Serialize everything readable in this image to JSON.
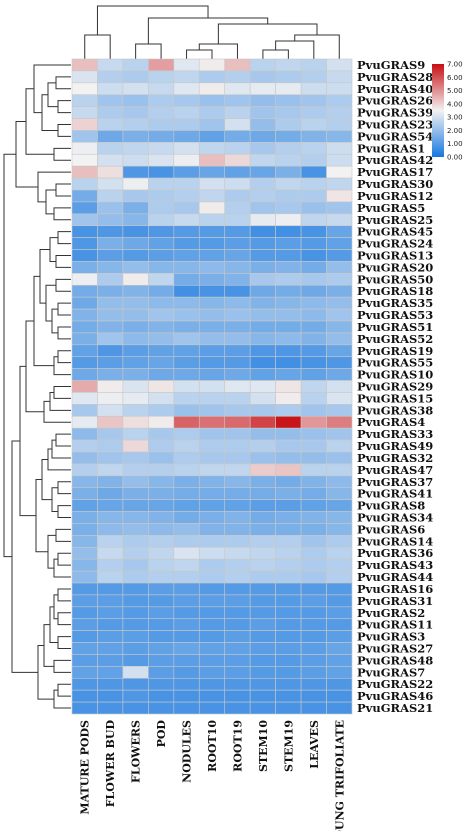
{
  "chart_data": {
    "type": "heatmap",
    "title": "",
    "xlabel": "",
    "ylabel": "",
    "color_scale": {
      "min": 0,
      "max": 7,
      "ticks": [
        "0.00",
        "1.00",
        "2.00",
        "3.00",
        "4.00",
        "5.00",
        "6.00",
        "7.00"
      ],
      "colors": [
        "#1677e0",
        "#f2f2f2",
        "#c70f14"
      ]
    },
    "columns": [
      "MATURE PODS",
      "FLOWER BUD",
      "FLOWERS",
      "POD",
      "NODULES",
      "ROOT10",
      "ROOT19",
      "STEM10",
      "STEM19",
      "LEAVES",
      "YOUNG TRIFOLIATE"
    ],
    "rows": [
      "PvuGRAS9",
      "PvuGRAS28",
      "PvuGRAS40",
      "PvuGRAS26",
      "PvuGRAS39",
      "PvuGRAS23",
      "PvuGRAS54",
      "PvuGRAS1",
      "PvuGRAS42",
      "PvuGRAS17",
      "PvuGRAS30",
      "PvuGRAS12",
      "PvuGRAS5",
      "PvuGRAS25",
      "PvuGRAS45",
      "PvuGRAS24",
      "PvuGRAS13",
      "PvuGRAS20",
      "PvuGRAS50",
      "PvuGRAS18",
      "PvuGRAS35",
      "PvuGRAS53",
      "PvuGRAS51",
      "PvuGRAS52",
      "PvuGRAS19",
      "PvuGRAS55",
      "PvuGRAS10",
      "PvuGRAS29",
      "PvuGRAS15",
      "PvuGRAS38",
      "PvuGRAS4",
      "PvuGRAS33",
      "PvuGRAS49",
      "PvuGRAS32",
      "PvuGRAS47",
      "PvuGRAS37",
      "PvuGRAS41",
      "PvuGRAS8",
      "PvuGRAS34",
      "PvuGRAS6",
      "PvuGRAS14",
      "PvuGRAS36",
      "PvuGRAS43",
      "PvuGRAS44",
      "PvuGRAS16",
      "PvuGRAS31",
      "PvuGRAS2",
      "PvuGRAS11",
      "PvuGRAS3",
      "PvuGRAS27",
      "PvuGRAS48",
      "PvuGRAS7",
      "PvuGRAS22",
      "PvuGRAS46",
      "PvuGRAS21"
    ],
    "values": [
      [
        4.3,
        2.8,
        2.6,
        4.8,
        3.2,
        3.6,
        4.3,
        2.6,
        2.7,
        2.6,
        3.0
      ],
      [
        3.1,
        2.5,
        2.4,
        2.6,
        2.7,
        2.4,
        2.5,
        2.3,
        2.4,
        2.5,
        2.8
      ],
      [
        3.5,
        2.9,
        3.0,
        2.8,
        3.2,
        3.6,
        3.2,
        3.3,
        3.3,
        2.9,
        2.9
      ],
      [
        2.6,
        2.2,
        2.1,
        2.4,
        2.3,
        2.1,
        2.2,
        2.0,
        2.1,
        2.2,
        2.4
      ],
      [
        2.8,
        2.4,
        2.3,
        2.5,
        2.6,
        2.4,
        2.6,
        2.2,
        2.3,
        2.4,
        2.5
      ],
      [
        4.0,
        2.6,
        2.5,
        2.4,
        2.4,
        2.2,
        3.0,
        2.0,
        2.4,
        2.6,
        2.5
      ],
      [
        2.2,
        1.4,
        1.6,
        1.5,
        1.4,
        1.2,
        1.5,
        1.4,
        1.5,
        1.7,
        1.8
      ],
      [
        3.4,
        2.6,
        2.7,
        2.8,
        3.0,
        2.7,
        2.6,
        2.3,
        2.5,
        2.6,
        2.9
      ],
      [
        3.5,
        3.0,
        2.9,
        3.1,
        3.4,
        4.3,
        3.9,
        2.7,
        2.6,
        2.5,
        2.9
      ],
      [
        4.3,
        3.8,
        0.9,
        0.8,
        1.1,
        1.3,
        1.2,
        1.3,
        1.6,
        0.8,
        3.5
      ],
      [
        2.6,
        3.0,
        3.4,
        2.6,
        2.6,
        3.0,
        2.9,
        2.5,
        2.7,
        2.6,
        2.7
      ],
      [
        1.5,
        2.6,
        2.3,
        2.4,
        2.5,
        2.7,
        2.4,
        2.5,
        2.4,
        2.4,
        3.7
      ],
      [
        1.1,
        2.1,
        1.6,
        2.4,
        2.3,
        3.6,
        2.5,
        2.2,
        2.3,
        2.1,
        2.2
      ],
      [
        2.2,
        2.0,
        1.8,
        2.6,
        2.8,
        2.6,
        2.6,
        3.3,
        3.4,
        2.7,
        2.8
      ],
      [
        0.8,
        0.9,
        0.8,
        0.9,
        1.0,
        1.0,
        1.0,
        0.7,
        0.7,
        0.8,
        1.3
      ],
      [
        0.9,
        1.6,
        1.4,
        1.2,
        1.0,
        1.0,
        1.1,
        1.0,
        1.1,
        1.0,
        1.2
      ],
      [
        0.8,
        1.1,
        1.0,
        1.1,
        1.2,
        1.2,
        1.3,
        1.0,
        1.0,
        0.8,
        1.0
      ],
      [
        1.6,
        1.8,
        2.0,
        1.8,
        1.8,
        1.9,
        1.8,
        1.6,
        1.7,
        1.5,
        2.0
      ],
      [
        3.4,
        2.4,
        3.6,
        2.7,
        1.5,
        1.6,
        1.7,
        2.3,
        2.4,
        2.3,
        2.4
      ],
      [
        1.5,
        1.6,
        1.7,
        1.5,
        0.7,
        0.8,
        0.8,
        1.4,
        1.5,
        1.4,
        1.6
      ],
      [
        1.4,
        2.0,
        2.0,
        1.9,
        1.9,
        1.8,
        1.9,
        1.7,
        1.8,
        1.9,
        2.0
      ],
      [
        1.7,
        2.0,
        2.0,
        2.2,
        2.1,
        2.0,
        2.1,
        2.0,
        2.0,
        1.9,
        2.2
      ],
      [
        1.5,
        1.7,
        1.6,
        1.7,
        1.6,
        1.6,
        1.6,
        1.5,
        1.5,
        1.5,
        1.8
      ],
      [
        1.6,
        2.2,
        1.9,
        2.0,
        2.2,
        2.0,
        2.0,
        1.8,
        1.9,
        1.7,
        2.0
      ],
      [
        1.2,
        0.9,
        1.1,
        1.2,
        1.2,
        1.1,
        1.1,
        0.9,
        0.9,
        1.0,
        1.3
      ],
      [
        1.0,
        1.1,
        1.2,
        1.3,
        1.1,
        1.0,
        1.0,
        0.7,
        0.7,
        0.8,
        0.9
      ],
      [
        1.4,
        1.6,
        1.6,
        1.4,
        1.4,
        1.3,
        1.4,
        1.2,
        1.3,
        1.2,
        1.4
      ],
      [
        4.6,
        3.6,
        3.1,
        3.7,
        3.0,
        3.0,
        3.2,
        3.2,
        3.7,
        2.7,
        3.0
      ],
      [
        3.2,
        3.4,
        3.3,
        3.0,
        2.6,
        2.6,
        2.6,
        3.0,
        3.6,
        2.6,
        3.1
      ],
      [
        2.3,
        3.0,
        2.6,
        2.4,
        2.1,
        2.2,
        2.3,
        2.3,
        2.4,
        2.2,
        2.3
      ],
      [
        3.3,
        4.2,
        3.8,
        3.6,
        5.7,
        5.5,
        5.6,
        6.2,
        6.9,
        4.9,
        5.3
      ],
      [
        1.9,
        2.3,
        2.6,
        2.3,
        2.4,
        2.2,
        2.2,
        2.0,
        2.0,
        2.1,
        2.2
      ],
      [
        2.5,
        2.4,
        3.9,
        2.4,
        2.6,
        2.4,
        2.4,
        2.5,
        2.3,
        2.3,
        2.6
      ],
      [
        2.0,
        2.2,
        2.3,
        2.1,
        2.4,
        2.3,
        2.3,
        2.1,
        2.0,
        2.0,
        2.1
      ],
      [
        2.5,
        2.7,
        2.5,
        2.5,
        2.6,
        2.7,
        2.7,
        4.1,
        4.2,
        2.6,
        2.6
      ],
      [
        1.8,
        1.7,
        2.0,
        1.8,
        1.6,
        1.7,
        1.8,
        1.6,
        1.5,
        1.7,
        1.9
      ],
      [
        1.6,
        1.4,
        1.6,
        1.6,
        1.5,
        1.5,
        1.5,
        1.5,
        1.6,
        1.5,
        1.8
      ],
      [
        1.2,
        1.3,
        1.3,
        1.3,
        1.2,
        1.2,
        1.2,
        1.1,
        1.1,
        1.2,
        1.3
      ],
      [
        1.6,
        1.8,
        1.8,
        1.7,
        1.5,
        1.6,
        1.7,
        1.5,
        1.6,
        1.7,
        1.8
      ],
      [
        1.6,
        1.9,
        2.0,
        1.9,
        2.0,
        1.7,
        1.7,
        1.6,
        1.6,
        1.6,
        1.8
      ],
      [
        1.8,
        2.6,
        2.4,
        2.5,
        2.4,
        2.4,
        2.4,
        2.5,
        2.5,
        2.2,
        2.4
      ],
      [
        2.0,
        2.8,
        2.5,
        2.7,
        3.1,
        2.9,
        2.8,
        2.7,
        2.6,
        2.4,
        2.6
      ],
      [
        1.8,
        2.5,
        2.3,
        2.6,
        2.7,
        2.4,
        2.5,
        2.6,
        2.5,
        2.4,
        2.5
      ],
      [
        1.9,
        2.6,
        2.4,
        2.5,
        2.5,
        2.4,
        2.5,
        2.4,
        2.4,
        2.3,
        2.5
      ],
      [
        1.0,
        1.0,
        1.0,
        1.1,
        1.1,
        1.0,
        1.0,
        1.0,
        1.0,
        1.0,
        1.0
      ],
      [
        1.1,
        1.1,
        1.0,
        1.0,
        1.1,
        1.1,
        1.1,
        1.0,
        1.0,
        1.1,
        1.0
      ],
      [
        1.0,
        1.1,
        1.0,
        1.1,
        1.0,
        1.0,
        1.0,
        1.0,
        1.0,
        1.0,
        1.1
      ],
      [
        1.1,
        1.0,
        1.0,
        1.0,
        1.1,
        1.0,
        1.0,
        1.1,
        1.0,
        1.0,
        1.0
      ],
      [
        1.0,
        1.1,
        1.1,
        1.0,
        1.0,
        1.0,
        1.1,
        1.0,
        1.0,
        1.0,
        1.1
      ],
      [
        1.2,
        1.2,
        1.1,
        1.2,
        1.3,
        1.2,
        1.2,
        1.1,
        1.1,
        1.1,
        1.3
      ],
      [
        1.1,
        1.1,
        1.0,
        1.1,
        1.1,
        1.1,
        1.1,
        1.0,
        1.0,
        1.1,
        1.2
      ],
      [
        1.2,
        1.2,
        3.0,
        1.1,
        1.0,
        1.1,
        1.1,
        1.0,
        1.0,
        1.1,
        1.2
      ],
      [
        0.9,
        0.9,
        0.9,
        0.9,
        0.9,
        0.9,
        0.9,
        0.9,
        0.9,
        0.9,
        0.9
      ],
      [
        0.8,
        0.8,
        0.9,
        0.8,
        0.8,
        0.8,
        0.8,
        0.8,
        0.8,
        0.8,
        0.8
      ],
      [
        0.8,
        0.8,
        0.8,
        0.8,
        0.8,
        0.8,
        0.8,
        0.8,
        0.8,
        0.8,
        0.8
      ]
    ]
  }
}
